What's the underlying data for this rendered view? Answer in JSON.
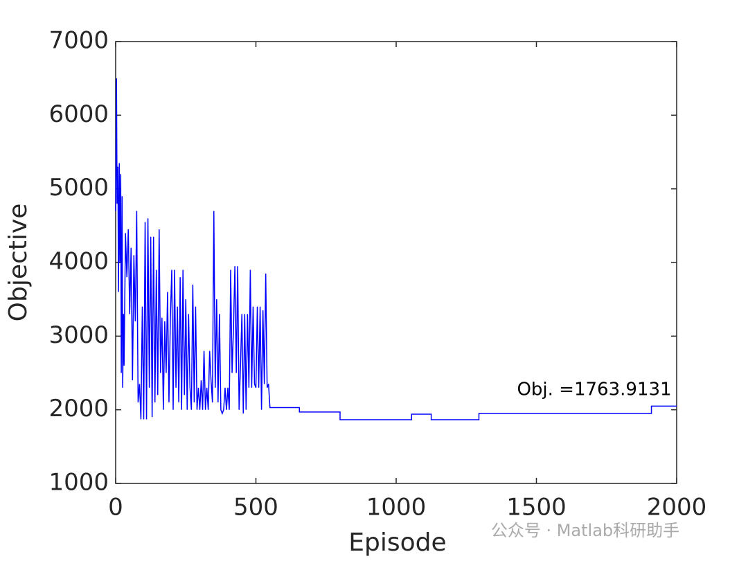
{
  "chart_data": {
    "type": "line",
    "x": [
      0,
      3,
      5,
      8,
      10,
      13,
      15,
      18,
      20,
      23,
      25,
      28,
      30,
      35,
      40,
      45,
      50,
      55,
      60,
      65,
      70,
      75,
      80,
      85,
      90,
      95,
      100,
      105,
      110,
      115,
      120,
      125,
      130,
      135,
      140,
      145,
      150,
      155,
      160,
      165,
      170,
      175,
      180,
      185,
      190,
      195,
      200,
      205,
      210,
      215,
      220,
      225,
      230,
      235,
      240,
      245,
      250,
      255,
      260,
      265,
      270,
      275,
      280,
      285,
      290,
      295,
      300,
      305,
      310,
      315,
      320,
      325,
      330,
      335,
      340,
      345,
      350,
      355,
      360,
      365,
      370,
      375,
      380,
      385,
      390,
      395,
      400,
      405,
      410,
      415,
      420,
      425,
      430,
      435,
      440,
      445,
      450,
      455,
      460,
      465,
      470,
      475,
      480,
      485,
      490,
      495,
      500,
      505,
      510,
      515,
      520,
      525,
      530,
      535,
      540,
      545,
      550,
      655,
      655,
      800,
      800,
      1055,
      1055,
      1125,
      1125,
      1295,
      1295,
      1910,
      1910,
      2000
    ],
    "series": [
      {
        "name": "Objective",
        "color": "#0000ff",
        "values": [
          4700,
          6500,
          4800,
          5300,
          3600,
          5350,
          4000,
          5200,
          2500,
          4900,
          2300,
          3300,
          2600,
          4400,
          3800,
          4450,
          3300,
          4200,
          2400,
          4100,
          3200,
          4700,
          2100,
          2350,
          1870,
          3400,
          1870,
          4550,
          1870,
          4600,
          2300,
          4350,
          1900,
          4350,
          2100,
          3900,
          2200,
          4450,
          2500,
          3250,
          2000,
          3200,
          2500,
          3600,
          2100,
          3250,
          3900,
          2000,
          3900,
          2300,
          3400,
          2100,
          3800,
          2000,
          3900,
          2200,
          3500,
          2000,
          3300,
          2300,
          2000,
          3700,
          2100,
          3400,
          2000,
          2300,
          2000,
          2400,
          2000,
          2800,
          2000,
          2300,
          2000,
          2800,
          2400,
          2100,
          4700,
          2300,
          3500,
          2100,
          3300,
          2000,
          1950,
          2000,
          2300,
          2000,
          2300,
          2000,
          3900,
          2500,
          3100,
          3950,
          2500,
          3950,
          2000,
          2600,
          3300,
          1950,
          3300,
          2000,
          3300,
          2300,
          3900,
          2300,
          3400,
          2350,
          2300,
          3400,
          2300,
          3400,
          2000,
          3350,
          2350,
          3850,
          2300,
          2350,
          2030,
          2030,
          1970,
          1970,
          1865,
          1865,
          1940,
          1940,
          1865,
          1865,
          1950,
          1950,
          2050,
          2050
        ]
      }
    ],
    "xlabel": "Episode",
    "ylabel": "Objective",
    "xlim": [
      0,
      2000
    ],
    "xticks": [
      0,
      500,
      1000,
      1500,
      2000
    ],
    "ylim": [
      1000,
      7000
    ],
    "yticks": [
      1000,
      2000,
      3000,
      4000,
      5000,
      6000,
      7000
    ],
    "annotation": "Obj. =1763.9131",
    "watermark": "公众号 · Matlab科研助手"
  }
}
